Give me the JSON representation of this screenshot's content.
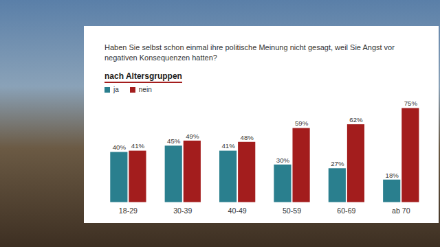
{
  "chart_data": {
    "type": "bar",
    "title": "Haben Sie selbst schon einmal ihre politische Meinung nicht gesagt, weil Sie Angst vor negativen Konsequenzen hatten?",
    "subtitle": "nach Altersgruppen",
    "categories": [
      "18-29",
      "30-39",
      "40-49",
      "50-59",
      "60-69",
      "ab 70"
    ],
    "series": [
      {
        "name": "ja",
        "color": "#2a7f8e",
        "values": [
          40,
          45,
          41,
          30,
          27,
          18
        ],
        "value_labels": [
          "40%",
          "45%",
          "41%",
          "30%",
          "27%",
          "18%"
        ]
      },
      {
        "name": "nein",
        "color": "#a31d1d",
        "values": [
          41,
          49,
          48,
          59,
          62,
          75
        ],
        "value_labels": [
          "41%",
          "49%",
          "48%",
          "59%",
          "62%",
          "75%"
        ]
      }
    ],
    "ylim": [
      0,
      75
    ],
    "data_labels": true,
    "tick_labels": "x",
    "legend": "top-left",
    "grid": false
  }
}
